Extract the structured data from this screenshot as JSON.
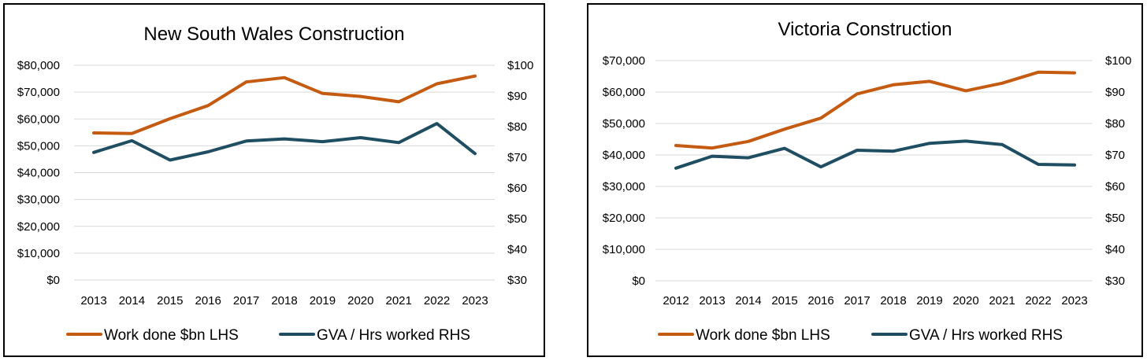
{
  "colors": {
    "work_done": "#c55a11",
    "gva": "#1f4e63",
    "grid": "#d9d9d9",
    "border": "#000000"
  },
  "chart_data": [
    {
      "type": "line",
      "title": "New South Wales Construction",
      "x": [
        "2013",
        "2014",
        "2015",
        "2016",
        "2017",
        "2018",
        "2019",
        "2020",
        "2021",
        "2022",
        "2023"
      ],
      "left_axis": {
        "ticks": [
          "$0",
          "$10,000",
          "$20,000",
          "$30,000",
          "$40,000",
          "$50,000",
          "$60,000",
          "$70,000",
          "$80,000"
        ],
        "ylim": [
          0,
          80000
        ]
      },
      "right_axis": {
        "ticks": [
          "$30",
          "$40",
          "$50",
          "$60",
          "$70",
          "$80",
          "$90",
          "$100"
        ],
        "ylim": [
          30,
          100
        ]
      },
      "series": [
        {
          "name": "Work done $bn LHS",
          "axis": "left",
          "color": "#c55a11",
          "values": [
            54800,
            54600,
            60100,
            65000,
            73800,
            75400,
            69500,
            68400,
            66400,
            73100,
            76000
          ]
        },
        {
          "name": "GVA / Hrs worked RHS",
          "axis": "right",
          "color": "#1f4e63",
          "values": [
            71.6,
            75.4,
            69.1,
            71.8,
            75.3,
            76.0,
            75.1,
            76.4,
            74.8,
            81.0,
            71.2
          ]
        }
      ],
      "grid": true,
      "legend_position": "bottom"
    },
    {
      "type": "line",
      "title": "Victoria Construction",
      "x": [
        "2012",
        "2013",
        "2014",
        "2015",
        "2016",
        "2017",
        "2018",
        "2019",
        "2020",
        "2021",
        "2022",
        "2023"
      ],
      "left_axis": {
        "ticks": [
          "$0",
          "$10,000",
          "$20,000",
          "$30,000",
          "$40,000",
          "$50,000",
          "$60,000",
          "$70,000"
        ],
        "ylim": [
          0,
          70000
        ]
      },
      "right_axis": {
        "ticks": [
          "$30",
          "$40",
          "$50",
          "$60",
          "$70",
          "$80",
          "$90",
          "$100"
        ],
        "ylim": [
          30,
          100
        ]
      },
      "series": [
        {
          "name": "Work done $bn LHS",
          "axis": "left",
          "color": "#c55a11",
          "values": [
            43000,
            42200,
            44300,
            48200,
            51700,
            59400,
            62300,
            63400,
            60400,
            62800,
            66300,
            66100
          ]
        },
        {
          "name": "GVA / Hrs worked RHS",
          "axis": "right",
          "color": "#1f4e63",
          "values": [
            65.8,
            69.6,
            69.1,
            72.1,
            66.2,
            71.5,
            71.2,
            73.7,
            74.4,
            73.3,
            67.0,
            66.8
          ]
        }
      ],
      "grid": true,
      "legend_position": "bottom"
    }
  ]
}
